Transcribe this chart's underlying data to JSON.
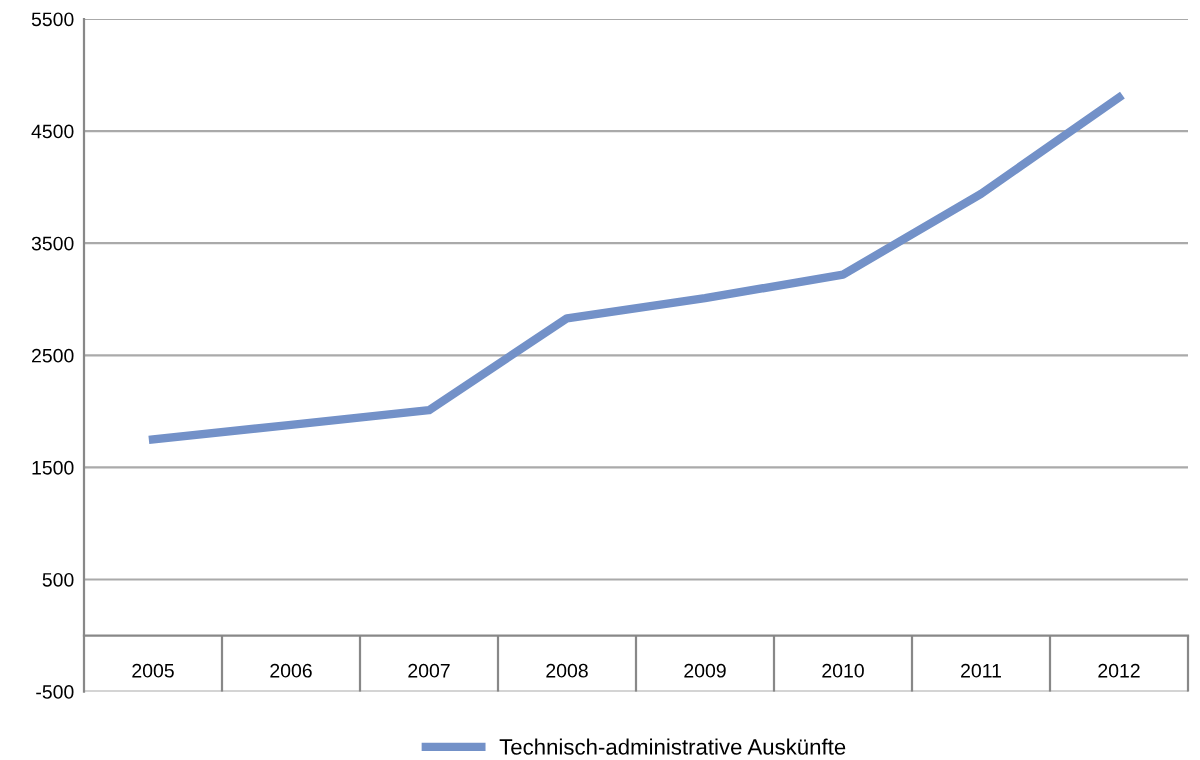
{
  "chart_data": {
    "type": "line",
    "categories": [
      "2005",
      "2006",
      "2007",
      "2008",
      "2009",
      "2010",
      "2011",
      "2012"
    ],
    "series": [
      {
        "name": "Technisch-administrative Auskünfte",
        "color": "#7391c8",
        "values": [
          1750,
          1880,
          2010,
          2830,
          3010,
          3220,
          3940,
          4800
        ]
      }
    ],
    "ylim": [
      -500,
      5500
    ],
    "yticks": [
      -500,
      500,
      1500,
      2500,
      3500,
      4500,
      5500
    ],
    "grid": "y",
    "legend": "bottom",
    "marker": "none",
    "line_style": "solid"
  }
}
